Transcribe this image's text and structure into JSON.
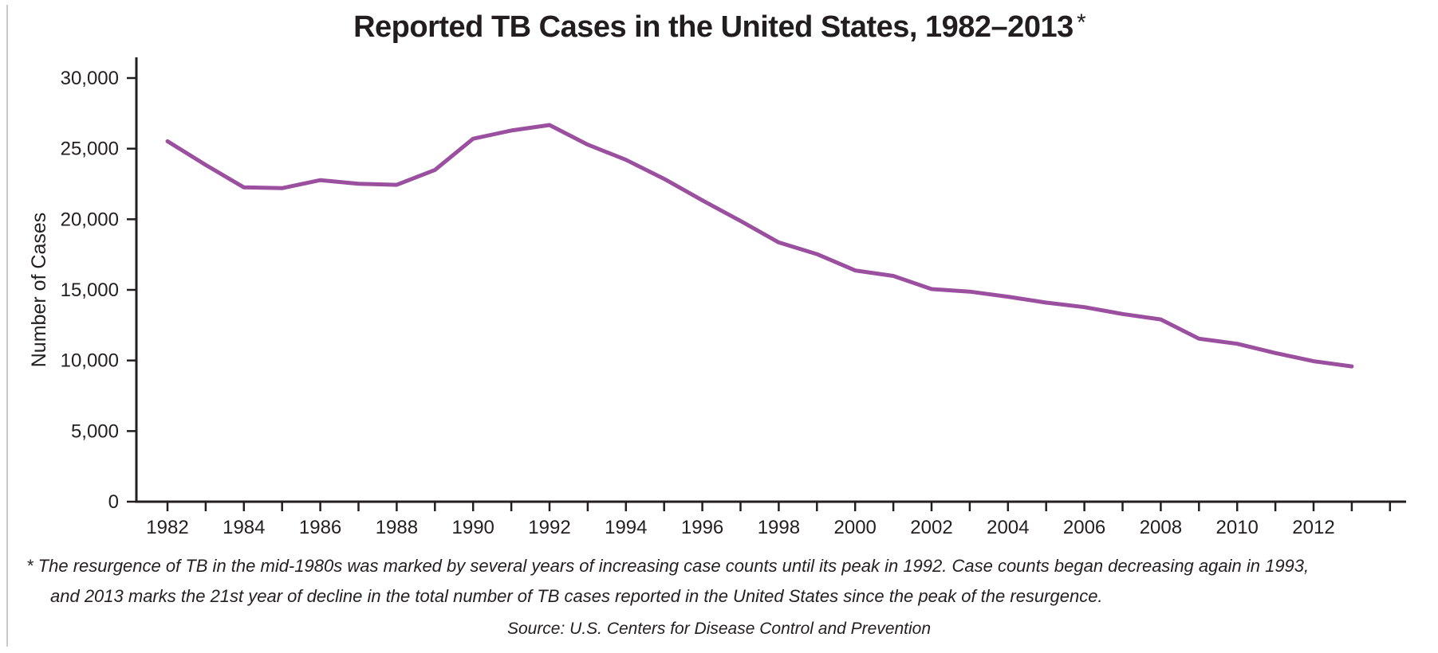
{
  "title": {
    "main": "Reported TB Cases in the United States, 1982–2013",
    "asterisk": "*"
  },
  "footnote": {
    "lines": [
      "* The resurgence of TB in the mid-1980s was marked by several years of increasing case counts until its peak in 1992. Case counts began decreasing again in 1993,",
      "and 2013 marks the 21st year of decline in the total number of TB cases reported in the United States since the peak of the resurgence."
    ]
  },
  "source": {
    "text": "Source: U.S. Centers for Disease Control and Prevention"
  },
  "chart_data": {
    "type": "line",
    "title": "Reported TB Cases in the United States, 1982–2013*",
    "xlabel": "",
    "ylabel": "Number of Cases",
    "x": [
      1982,
      1983,
      1984,
      1985,
      1986,
      1987,
      1988,
      1989,
      1990,
      1991,
      1992,
      1993,
      1994,
      1995,
      1996,
      1997,
      1998,
      1999,
      2000,
      2001,
      2002,
      2003,
      2004,
      2005,
      2006,
      2007,
      2008,
      2009,
      2010,
      2011,
      2012,
      2013
    ],
    "values": [
      25520,
      23846,
      22255,
      22201,
      22768,
      22517,
      22436,
      23495,
      25701,
      26283,
      26673,
      25287,
      24206,
      22860,
      21337,
      19885,
      18361,
      17531,
      16377,
      15989,
      15056,
      14874,
      14517,
      14097,
      13779,
      13293,
      12906,
      11545,
      11182,
      10528,
      9945,
      9582
    ],
    "ylim": [
      0,
      30000
    ],
    "y_ticks": [
      0,
      5000,
      10000,
      15000,
      20000,
      25000,
      30000
    ],
    "y_tick_labels": [
      "0",
      "5,000",
      "10,000",
      "15,000",
      "20,000",
      "25,000",
      "30,000"
    ],
    "x_tick_labels": [
      1982,
      1984,
      1986,
      1988,
      1990,
      1992,
      1994,
      1996,
      1998,
      2000,
      2002,
      2004,
      2006,
      2008,
      2010,
      2012
    ],
    "minor_x_ticks_every_year": true,
    "line_color": "#9B4F9F",
    "axis_color": "#231F20",
    "grid": false,
    "legend": false
  }
}
